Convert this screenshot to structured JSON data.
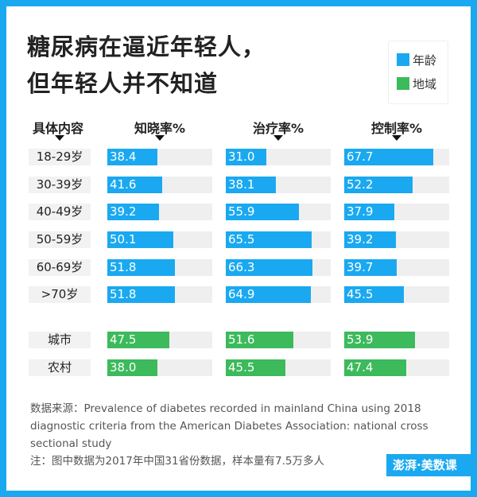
{
  "title": [
    "糖尿病在逼近年轻人，",
    "但年轻人并不知道"
  ],
  "legend": [
    {
      "label": "年龄",
      "color": "#1aa9f0"
    },
    {
      "label": "地域",
      "color": "#3cba5c"
    }
  ],
  "chart_data": {
    "type": "bar",
    "orientation": "horizontal",
    "xlim": [
      0,
      80
    ],
    "row_header": "具体内容",
    "columns": [
      "知晓率%",
      "治疗率%",
      "控制率%"
    ],
    "categories": [
      "18-29岁",
      "30-39岁",
      "40-49岁",
      "50-59岁",
      "60-69岁",
      ">70岁",
      "城市",
      "农村"
    ],
    "groups": [
      "年龄",
      "年龄",
      "年龄",
      "年龄",
      "年龄",
      "年龄",
      "地域",
      "地域"
    ],
    "series": [
      {
        "name": "知晓率%",
        "values": [
          38.4,
          41.6,
          39.2,
          50.1,
          51.8,
          51.8,
          47.5,
          38.0
        ]
      },
      {
        "name": "治疗率%",
        "values": [
          31.0,
          38.1,
          55.9,
          65.5,
          66.3,
          64.9,
          51.6,
          45.5
        ]
      },
      {
        "name": "控制率%",
        "values": [
          67.7,
          52.2,
          37.9,
          39.2,
          39.7,
          45.5,
          53.9,
          47.4
        ]
      }
    ]
  },
  "source": "数据来源：Prevalence of diabetes recorded in mainland China using 2018 diagnostic criteria from the American Diabetes Association: national cross sectional study",
  "note": "注：图中数据为2017年中国31省份数据，样本量有7.5万多人",
  "logo": "澎湃·美数课"
}
